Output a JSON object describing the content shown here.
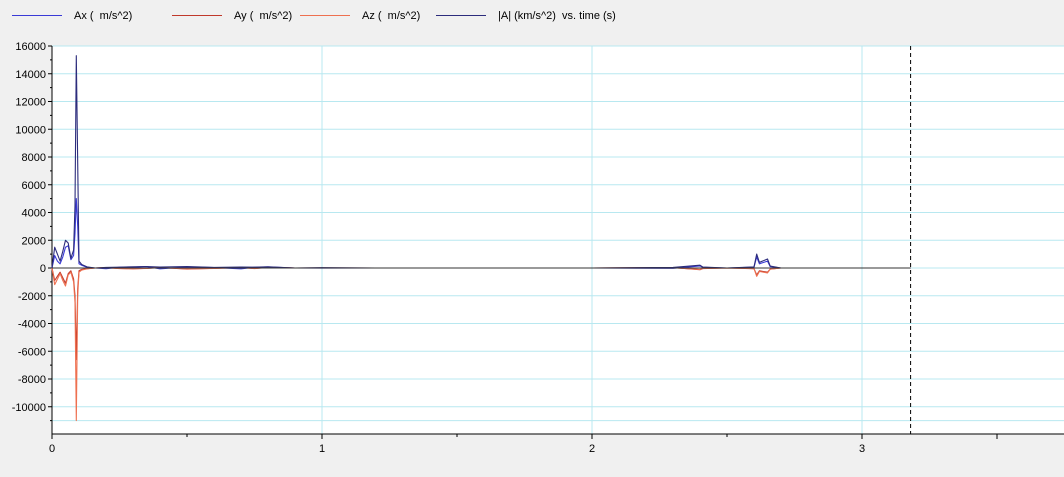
{
  "colors": {
    "ax": "#3a3ad6",
    "ay": "#c0392b",
    "az": "#ee7050",
    "amag": "#2c2c7c",
    "grid": "#b8e8f0",
    "background": "#ffffff",
    "cursor": "#000000"
  },
  "legend": {
    "ax_label": "Ax (  m/s^2)",
    "ay_label": "Ay (  m/s^2)",
    "az_label": "Az (  m/s^2)",
    "amag_label": "|A| (km/s^2)  vs. time (s)"
  },
  "chart_data": {
    "type": "line",
    "xlabel": "time (s)",
    "ylabel": "",
    "xlim": [
      0,
      3.8
    ],
    "ylim": [
      -12000,
      16000
    ],
    "x_ticks": [
      "0",
      "1",
      "2",
      "3"
    ],
    "y_ticks": [
      "16000",
      "14000",
      "12000",
      "10000",
      "8000",
      "6000",
      "4000",
      "2000",
      "0",
      "-2000",
      "-4000",
      "-6000",
      "-8000",
      "-10000"
    ],
    "grid": true,
    "legend_position": "top",
    "cursor_x": 3.18,
    "series": [
      {
        "name": "Ax (  m/s^2)",
        "x": [
          0,
          0.01,
          0.02,
          0.03,
          0.04,
          0.05,
          0.06,
          0.07,
          0.08,
          0.085,
          0.09,
          0.095,
          0.1,
          0.11,
          0.13,
          0.16,
          0.2,
          0.25,
          0.3,
          0.35,
          0.4,
          0.5,
          0.6,
          0.7,
          0.75,
          0.8,
          0.9,
          1.0,
          1.2,
          1.5,
          1.8,
          2.0,
          2.3,
          2.4,
          2.41,
          2.5,
          2.6,
          2.61,
          2.62,
          2.65,
          2.66,
          2.7,
          2.8,
          3.0,
          3.18
        ],
        "y": [
          0,
          900,
          500,
          300,
          800,
          1500,
          1600,
          600,
          900,
          2500,
          5000,
          3000,
          300,
          200,
          50,
          0,
          -50,
          50,
          60,
          100,
          -60,
          80,
          30,
          -60,
          50,
          80,
          0,
          -10,
          0,
          0,
          0,
          0,
          -20,
          150,
          50,
          0,
          60,
          800,
          300,
          500,
          100,
          0,
          0,
          0,
          0
        ]
      },
      {
        "name": "Ay (  m/s^2)",
        "x": [
          0,
          0.01,
          0.02,
          0.03,
          0.04,
          0.05,
          0.06,
          0.07,
          0.08,
          0.085,
          0.09,
          0.095,
          0.1,
          0.11,
          0.13,
          0.16,
          0.2,
          0.25,
          0.3,
          0.35,
          0.4,
          0.5,
          0.6,
          0.7,
          0.75,
          0.8,
          0.9,
          1.0,
          1.2,
          1.5,
          1.8,
          2.0,
          2.3,
          2.4,
          2.41,
          2.5,
          2.6,
          2.61,
          2.62,
          2.65,
          2.66,
          2.7,
          2.8,
          3.0,
          3.18
        ],
        "y": [
          0,
          -900,
          -600,
          -300,
          -700,
          -1100,
          -400,
          -200,
          -800,
          -2000,
          -6600,
          -1500,
          -200,
          -100,
          -50,
          0,
          30,
          -30,
          -60,
          -20,
          40,
          -80,
          -20,
          40,
          -30,
          50,
          0,
          10,
          0,
          0,
          0,
          0,
          30,
          -120,
          -40,
          0,
          -50,
          -500,
          -200,
          -300,
          -80,
          0,
          0,
          0,
          0
        ]
      },
      {
        "name": "Az (  m/s^2)",
        "x": [
          0,
          0.01,
          0.02,
          0.03,
          0.04,
          0.05,
          0.06,
          0.07,
          0.08,
          0.085,
          0.09,
          0.095,
          0.1,
          0.11,
          0.13,
          0.16,
          0.2,
          0.25,
          0.3,
          0.35,
          0.4,
          0.5,
          0.6,
          0.7,
          0.75,
          0.8,
          0.9,
          1.0,
          1.2,
          1.5,
          1.8,
          2.0,
          2.3,
          2.4,
          2.41,
          2.5,
          2.6,
          2.61,
          2.62,
          2.65,
          2.66,
          2.7,
          2.8,
          3.0,
          3.18
        ],
        "y": [
          0,
          -1200,
          -800,
          -400,
          -900,
          -1300,
          -500,
          -300,
          -1000,
          -2500,
          -11000,
          -2000,
          -300,
          -150,
          -60,
          0,
          20,
          -40,
          -50,
          -30,
          30,
          -60,
          -30,
          30,
          -40,
          40,
          0,
          0,
          0,
          0,
          0,
          0,
          20,
          -100,
          -30,
          0,
          -40,
          -600,
          -250,
          -350,
          -90,
          0,
          0,
          0,
          0
        ]
      },
      {
        "name": "|A| (km/s^2)  vs. time (s)",
        "x": [
          0,
          0.01,
          0.02,
          0.03,
          0.04,
          0.05,
          0.06,
          0.07,
          0.08,
          0.085,
          0.09,
          0.095,
          0.1,
          0.11,
          0.13,
          0.16,
          0.2,
          0.25,
          0.3,
          0.35,
          0.4,
          0.5,
          0.6,
          0.7,
          0.75,
          0.8,
          0.9,
          1.0,
          1.2,
          1.5,
          1.8,
          2.0,
          2.3,
          2.4,
          2.41,
          2.5,
          2.6,
          2.61,
          2.62,
          2.65,
          2.66,
          2.7,
          2.8,
          3.0,
          3.18
        ],
        "y": [
          0,
          1500,
          1000,
          500,
          1200,
          2000,
          1800,
          700,
          1300,
          4500,
          15300,
          7600,
          500,
          250,
          80,
          0,
          40,
          60,
          90,
          110,
          70,
          100,
          40,
          70,
          60,
          90,
          0,
          20,
          0,
          0,
          0,
          0,
          40,
          200,
          70,
          0,
          80,
          1000,
          400,
          650,
          140,
          0,
          0,
          0,
          0
        ]
      }
    ]
  }
}
